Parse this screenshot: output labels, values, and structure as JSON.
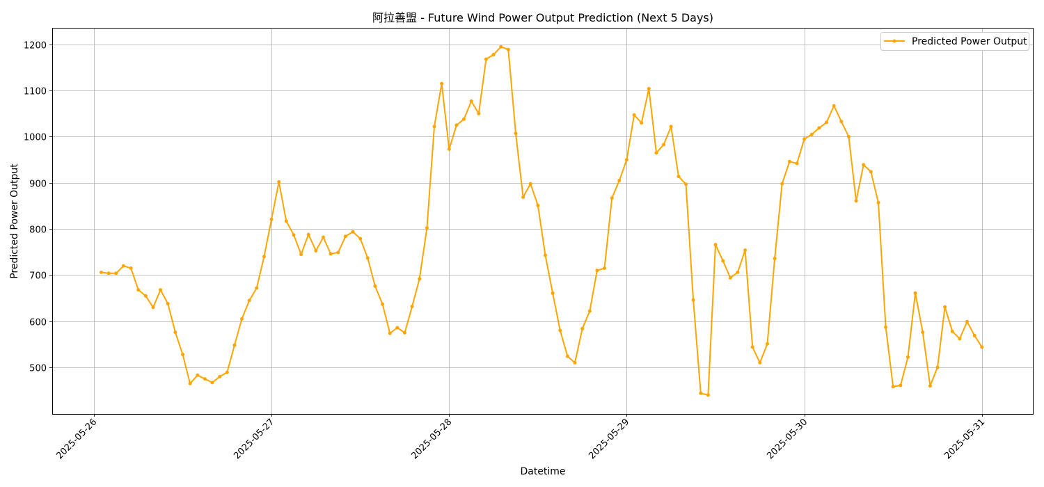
{
  "chart_data": {
    "type": "line",
    "title": "阿拉善盟 - Future Wind Power Output Prediction (Next 5 Days)",
    "xlabel": "Datetime",
    "ylabel": "Predicted Power Output",
    "x_start": "2025-05-26T01:00",
    "x_step_hours": 1,
    "x_ticks": [
      "2025-05-26",
      "2025-05-27",
      "2025-05-28",
      "2025-05-29",
      "2025-05-30",
      "2025-05-31"
    ],
    "y_ticks": [
      500,
      600,
      700,
      800,
      900,
      1000,
      1100,
      1200
    ],
    "xlim": [
      "2025-05-25T18:22",
      "2025-05-31T06:53"
    ],
    "ylim": [
      399,
      1236
    ],
    "grid": true,
    "legend_position": "top-right",
    "series": [
      {
        "name": "Predicted Power Output",
        "color": "#ffa500",
        "marker": "circle",
        "values": [
          706,
          704,
          704,
          720,
          715,
          668,
          655,
          630,
          668,
          638,
          576,
          528,
          465,
          483,
          475,
          467,
          480,
          489,
          548,
          605,
          645,
          672,
          740,
          821,
          902,
          817,
          787,
          745,
          788,
          753,
          782,
          746,
          749,
          784,
          794,
          779,
          737,
          676,
          637,
          574,
          586,
          575,
          632,
          692,
          802,
          1022,
          1115,
          973,
          1025,
          1038,
          1077,
          1050,
          1168,
          1178,
          1195,
          1189,
          1007,
          869,
          898,
          851,
          743,
          661,
          580,
          524,
          510,
          584,
          622,
          710,
          715,
          867,
          905,
          950,
          1047,
          1030,
          1104,
          965,
          983,
          1022,
          914,
          897,
          646,
          444,
          440,
          766,
          731,
          694,
          706,
          754,
          544,
          510,
          551,
          736,
          898,
          946,
          942,
          995,
          1005,
          1019,
          1031,
          1067,
          1033,
          1000,
          861,
          939,
          924,
          857,
          587,
          458,
          461,
          522,
          661,
          576,
          460,
          500,
          631,
          578,
          562,
          599,
          569,
          544
        ]
      }
    ]
  }
}
